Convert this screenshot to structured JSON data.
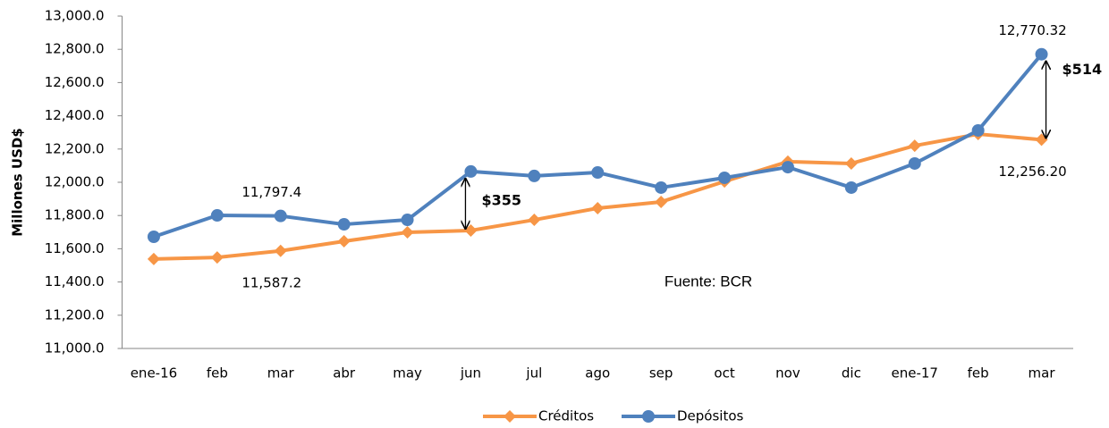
{
  "chart_data": {
    "type": "line",
    "y_label": "Millones USD$",
    "categories": [
      "ene-16",
      "feb",
      "mar",
      "abr",
      "may",
      "jun",
      "jul",
      "ago",
      "sep",
      "oct",
      "nov",
      "dic",
      "ene-17",
      "feb",
      "mar"
    ],
    "series": [
      {
        "name": "Créditos",
        "color": "#f79646",
        "marker": "diamond",
        "values": [
          11538,
          11548,
          11587.2,
          11645,
          11699,
          11710,
          11774,
          11844,
          11882,
          12005,
          12124,
          12113,
          12220,
          12290,
          12256.2
        ],
        "value_labels": [
          null,
          null,
          "11,587.2",
          null,
          null,
          null,
          null,
          null,
          null,
          null,
          null,
          null,
          null,
          null,
          "12,256.20"
        ]
      },
      {
        "name": "Depósitos",
        "color": "#4f81bd",
        "marker": "circle",
        "values": [
          11672,
          11801,
          11797.4,
          11747,
          11774,
          12065,
          12038,
          12059,
          11968,
          12027,
          12091,
          11968,
          12113,
          12312,
          12770.32
        ],
        "value_labels": [
          null,
          null,
          "11,797.4",
          null,
          null,
          null,
          null,
          null,
          null,
          null,
          null,
          null,
          null,
          null,
          "12,770.32"
        ]
      }
    ],
    "ylim": [
      11000,
      13000
    ],
    "yticks": [
      {
        "value": 11000,
        "label": "11,000.0"
      },
      {
        "value": 11200,
        "label": "11,200.0"
      },
      {
        "value": 11400,
        "label": "11,400.0"
      },
      {
        "value": 11600,
        "label": "11,600.0"
      },
      {
        "value": 11800,
        "label": "11,800.0"
      },
      {
        "value": 12000,
        "label": "12,000.0"
      },
      {
        "value": 12200,
        "label": "12,200.0"
      },
      {
        "value": 12400,
        "label": "12,400.0"
      },
      {
        "value": 12600,
        "label": "12,600.0"
      },
      {
        "value": 12800,
        "label": "12,800.0"
      },
      {
        "value": 13000,
        "label": "13,000.0"
      }
    ],
    "annotations": [
      {
        "text": "$355"
      },
      {
        "text": "$514"
      }
    ],
    "source": "Fuente: BCR",
    "grid": false,
    "legend": "bottom"
  }
}
